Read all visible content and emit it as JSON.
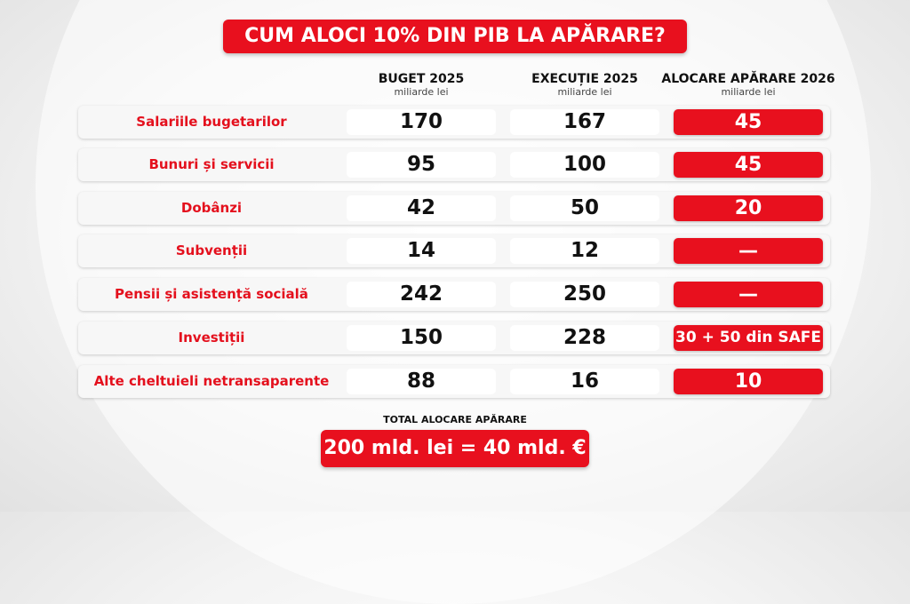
{
  "title": "CUM ALOCI 10% DIN PIB LA APĂRARE?",
  "columns": [
    {
      "header": "BUGET 2025",
      "sub": "miliarde lei"
    },
    {
      "header": "EXECUȚIE 2025",
      "sub": "miliarde lei"
    },
    {
      "header": "ALOCARE APĂRARE 2026",
      "sub": "miliarde lei"
    }
  ],
  "rows": [
    {
      "label": "Salariile bugetarilor",
      "buget": "170",
      "executie": "167",
      "alocare": "45"
    },
    {
      "label": "Bunuri și servicii",
      "buget": "95",
      "executie": "100",
      "alocare": "45"
    },
    {
      "label": "Dobânzi",
      "buget": "42",
      "executie": "50",
      "alocare": "20"
    },
    {
      "label": "Subvenții",
      "buget": "14",
      "executie": "12",
      "alocare": "—"
    },
    {
      "label": "Pensii și asistență socială",
      "buget": "242",
      "executie": "250",
      "alocare": "—"
    },
    {
      "label": "Investiții",
      "buget": "150",
      "executie": "228",
      "alocare": "30 + 50 din SAFE"
    },
    {
      "label": "Alte cheltuieli netransaparente",
      "buget": "88",
      "executie": "16",
      "alocare": "10"
    }
  ],
  "total": {
    "label": "TOTAL ALOCARE APĂRARE",
    "value": "200 mld. lei = 40 mld. €"
  },
  "colors": {
    "accent": "#e8101e",
    "label_red": "#e4101d"
  }
}
